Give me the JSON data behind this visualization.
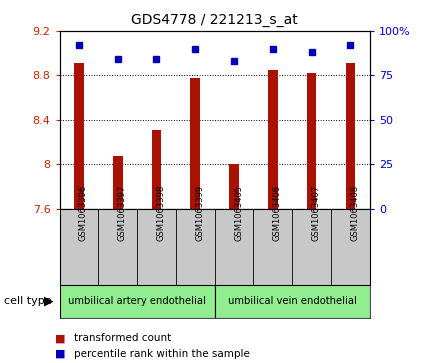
{
  "title": "GDS4778 / 221213_s_at",
  "samples": [
    "GSM1063396",
    "GSM1063397",
    "GSM1063398",
    "GSM1063399",
    "GSM1063405",
    "GSM1063406",
    "GSM1063407",
    "GSM1063408"
  ],
  "red_values": [
    8.91,
    8.07,
    8.31,
    8.78,
    8.0,
    8.85,
    8.82,
    8.91
  ],
  "blue_values": [
    92,
    84,
    84,
    90,
    83,
    90,
    88,
    92
  ],
  "ylim_left": [
    7.6,
    9.2
  ],
  "ylim_right": [
    0,
    100
  ],
  "yticks_left": [
    7.6,
    8.0,
    8.4,
    8.8,
    9.2
  ],
  "ytick_labels_left": [
    "7.6",
    "8",
    "8.4",
    "8.8",
    "9.2"
  ],
  "yticks_right": [
    0,
    25,
    50,
    75,
    100
  ],
  "ytick_labels_right": [
    "0",
    "25",
    "50",
    "75",
    "100%"
  ],
  "group1_label": "umbilical artery endothelial",
  "group2_label": "umbilical vein endothelial",
  "group_color": "#90EE90",
  "bar_color": "#AA1100",
  "dot_color": "#0000BB",
  "bar_width": 0.25,
  "legend_red_label": "transformed count",
  "legend_blue_label": "percentile rank within the sample",
  "cell_type_label": "cell type",
  "tick_bg_color": "#C8C8C8",
  "plot_bg_color": "white"
}
